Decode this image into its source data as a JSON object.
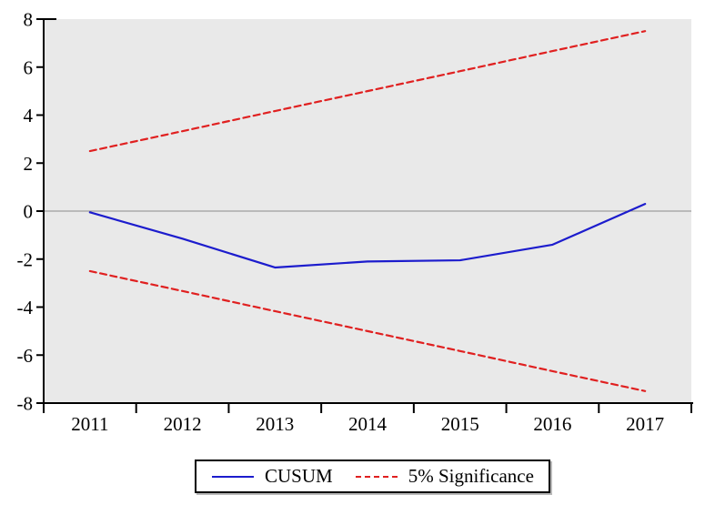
{
  "chart_data": {
    "type": "line",
    "title": "",
    "xlabel": "",
    "ylabel": "",
    "x": [
      2011,
      2012,
      2013,
      2014,
      2015,
      2016,
      2017
    ],
    "x_tick_labels": [
      "2011",
      "2012",
      "2013",
      "2014",
      "2015",
      "2016",
      "2017"
    ],
    "y_ticks": [
      8,
      6,
      4,
      2,
      0,
      -2,
      -4,
      -6,
      -8
    ],
    "y_tick_labels": [
      "8",
      "6",
      "4",
      "2",
      "0",
      "-2",
      "-4",
      "-6",
      "-8"
    ],
    "ylim": [
      -8,
      8
    ],
    "zero_line": true,
    "grid": false,
    "plot_bg_color": "#e9e9e9",
    "axis_color": "#000000",
    "zero_line_color": "#8a8a8a",
    "legend_position": "bottom",
    "series": [
      {
        "name": "CUSUM",
        "color": "#1c1ccd",
        "style": "solid",
        "values": [
          -0.05,
          -1.15,
          -2.35,
          -2.1,
          -2.05,
          -1.4,
          0.3
        ]
      },
      {
        "name": "5% Significance (upper)",
        "color": "#e02020",
        "style": "dashed",
        "values": [
          2.5,
          3.33,
          4.17,
          5.0,
          5.83,
          6.67,
          7.5
        ]
      },
      {
        "name": "5% Significance (lower)",
        "color": "#e02020",
        "style": "dashed",
        "values": [
          -2.5,
          -3.33,
          -4.17,
          -5.0,
          -5.83,
          -6.67,
          -7.5
        ]
      }
    ]
  },
  "legend": {
    "items": [
      {
        "label": "CUSUM",
        "color": "#1c1ccd",
        "style": "solid"
      },
      {
        "label": "5% Significance",
        "color": "#e02020",
        "style": "dashed"
      }
    ]
  }
}
